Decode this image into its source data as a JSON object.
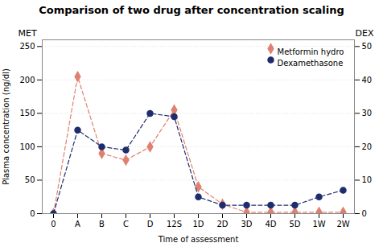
{
  "chart_data": {
    "type": "line",
    "title": "Comparison of two drug after concentration scaling",
    "xlabel": "Time of assessment",
    "ylabel": "Plasma concentration (ng/dl)",
    "annotations": [
      "MET",
      "DEX"
    ],
    "categories": [
      "0",
      "A",
      "B",
      "C",
      "D",
      "12S",
      "1D",
      "2D",
      "3D",
      "4D",
      "5D",
      "1W",
      "2W"
    ],
    "series": [
      {
        "name": "Metformin hydro",
        "color": "#E08070",
        "axis": "y",
        "marker": "diamond",
        "line_style": "dashed",
        "values": [
          0,
          205,
          90,
          80,
          100,
          155,
          40,
          14,
          2,
          2,
          2,
          2,
          2
        ]
      },
      {
        "name": "Dexamethasone",
        "color": "#1E2D6E",
        "axis": "y2",
        "marker": "circle",
        "line_style": "dashed",
        "values": [
          0,
          25,
          20,
          19,
          30,
          29,
          5,
          2.5,
          2.5,
          2.5,
          2.5,
          5,
          7
        ]
      }
    ],
    "ylim": [
      0,
      260
    ],
    "yticks": [
      0,
      50,
      100,
      150,
      200,
      250
    ],
    "y2lim": [
      0,
      52
    ],
    "y2ticks": [
      0,
      10,
      20,
      30,
      40,
      50
    ],
    "grid": true,
    "legend": "upper right"
  }
}
